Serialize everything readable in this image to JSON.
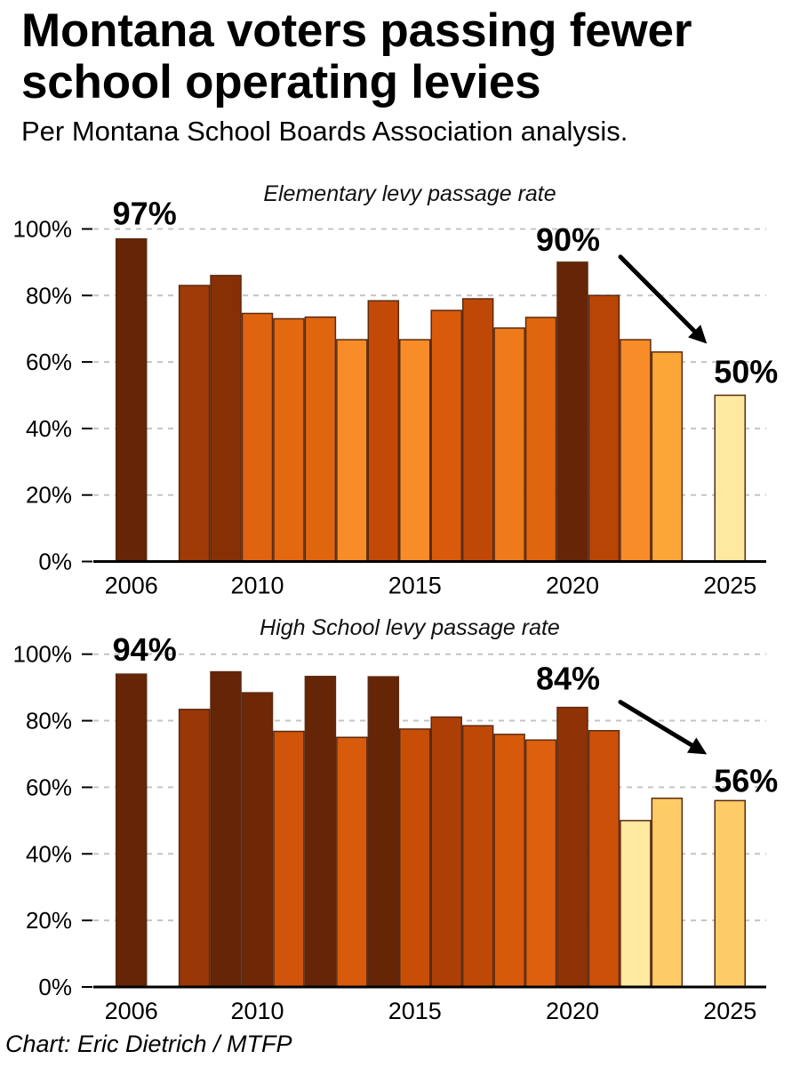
{
  "header": {
    "title": "Montana voters passing fewer school operating levies",
    "subtitle": "Per Montana School Boards Association analysis."
  },
  "footer": {
    "credit": "Chart: Eric Dietrich / MTFP"
  },
  "chart_data": [
    {
      "id": "elementary",
      "type": "bar",
      "title": "Elementary levy passage rate",
      "xlabel": "",
      "ylabel": "",
      "ylim": [
        0,
        100
      ],
      "xlim": [
        2006,
        2025
      ],
      "grid": true,
      "y_ticks": [
        0,
        20,
        40,
        60,
        80,
        100
      ],
      "y_tick_labels": [
        "0%",
        "20%",
        "40%",
        "60%",
        "80%",
        "100%"
      ],
      "x_ticks": [
        2006,
        2010,
        2015,
        2020,
        2025
      ],
      "x_tick_labels": [
        "2006",
        "2010",
        "2015",
        "2020",
        "2025"
      ],
      "categories": [
        2006,
        2008,
        2009,
        2010,
        2011,
        2012,
        2013,
        2014,
        2015,
        2016,
        2017,
        2018,
        2019,
        2020,
        2021,
        2022,
        2023,
        2025
      ],
      "values": [
        97,
        83,
        86,
        74.6,
        73,
        73.5,
        66.7,
        78.4,
        66.7,
        75.5,
        79,
        70.2,
        73.4,
        90,
        80,
        66.7,
        63,
        50
      ],
      "colors": [
        "#662506",
        "#a03a06",
        "#873006",
        "#e0630f",
        "#e36810",
        "#e0650f",
        "#f88c28",
        "#c24a06",
        "#f88c28",
        "#d95a0b",
        "#c04806",
        "#ee7a1c",
        "#e0650f",
        "#662506",
        "#b84406",
        "#f88c28",
        "#fba637",
        "#ffe8a0"
      ],
      "annotations": [
        {
          "label": "97%",
          "year": 2006,
          "value": 97
        },
        {
          "label": "90%",
          "year": 2020,
          "value": 90
        },
        {
          "label": "50%",
          "year": 2025,
          "value": 50
        }
      ],
      "arrow": {
        "from_year": 2020,
        "from_value": 90,
        "to_year": 2025,
        "to_value": 50
      }
    },
    {
      "id": "highschool",
      "type": "bar",
      "title": "High School levy passage rate",
      "xlabel": "",
      "ylabel": "",
      "ylim": [
        0,
        100
      ],
      "xlim": [
        2006,
        2025
      ],
      "grid": true,
      "y_ticks": [
        0,
        20,
        40,
        60,
        80,
        100
      ],
      "y_tick_labels": [
        "0%",
        "20%",
        "40%",
        "60%",
        "80%",
        "100%"
      ],
      "x_ticks": [
        2006,
        2010,
        2015,
        2020,
        2025
      ],
      "x_tick_labels": [
        "2006",
        "2010",
        "2015",
        "2020",
        "2025"
      ],
      "categories": [
        2006,
        2008,
        2009,
        2010,
        2011,
        2012,
        2013,
        2014,
        2015,
        2016,
        2017,
        2018,
        2019,
        2020,
        2021,
        2022,
        2023,
        2025
      ],
      "values": [
        94,
        83.4,
        94.7,
        88.4,
        76.8,
        93.3,
        75,
        93.2,
        77.5,
        81.1,
        78.5,
        75.9,
        74.2,
        84,
        77,
        50,
        56.7,
        56
      ],
      "colors": [
        "#662506",
        "#9a3706",
        "#662506",
        "#702706",
        "#d0540a",
        "#662506",
        "#d85a0b",
        "#662506",
        "#c84e08",
        "#ad3f06",
        "#c04806",
        "#d75a0b",
        "#de600e",
        "#8f3306",
        "#cc500a",
        "#ffe8a0",
        "#fecc66",
        "#fecc66"
      ],
      "annotations": [
        {
          "label": "94%",
          "year": 2006,
          "value": 94
        },
        {
          "label": "84%",
          "year": 2020,
          "value": 84
        },
        {
          "label": "56%",
          "year": 2025,
          "value": 56
        }
      ],
      "arrow": {
        "from_year": 2020,
        "from_value": 84,
        "to_year": 2025,
        "to_value": 56
      }
    }
  ]
}
